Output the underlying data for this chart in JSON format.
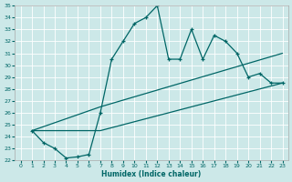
{
  "xlabel": "Humidex (Indice chaleur)",
  "bg_color": "#cce8e8",
  "grid_color": "#aacccc",
  "line_color": "#006666",
  "xlim": [
    -0.5,
    23.5
  ],
  "ylim": [
    22,
    35
  ],
  "yticks": [
    22,
    23,
    24,
    25,
    26,
    27,
    28,
    29,
    30,
    31,
    32,
    33,
    34,
    35
  ],
  "xticks": [
    0,
    1,
    2,
    3,
    4,
    5,
    6,
    7,
    8,
    9,
    10,
    11,
    12,
    13,
    14,
    15,
    16,
    17,
    18,
    19,
    20,
    21,
    22,
    23
  ],
  "series": [
    {
      "x": [
        1,
        2,
        3,
        4,
        5,
        6,
        7,
        8,
        9,
        10,
        11,
        12,
        13,
        14,
        15,
        16,
        17,
        18,
        19,
        20,
        21,
        22,
        23
      ],
      "y": [
        24.5,
        23.5,
        23.0,
        22.2,
        22.3,
        22.5,
        26.0,
        30.5,
        32.0,
        33.5,
        34.0,
        35.0,
        30.5,
        30.5,
        33.0,
        30.5,
        32.5,
        32.0,
        31.0,
        29.0,
        29.3,
        28.5,
        28.5
      ],
      "marker": "+",
      "lw": 0.9
    },
    {
      "x": [
        1,
        7,
        23
      ],
      "y": [
        24.5,
        26.5,
        31.0
      ],
      "marker": null,
      "lw": 0.9
    },
    {
      "x": [
        1,
        7,
        23
      ],
      "y": [
        24.5,
        24.5,
        28.5
      ],
      "marker": null,
      "lw": 0.9
    }
  ]
}
